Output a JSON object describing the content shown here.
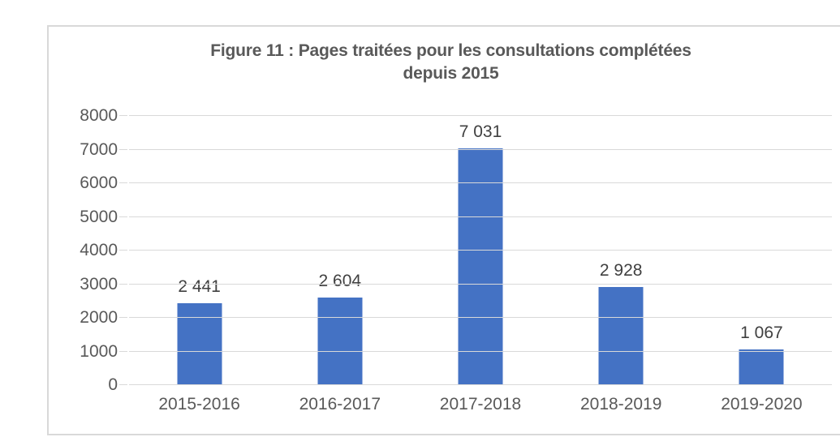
{
  "chart_data": {
    "type": "bar",
    "title": "Figure 11 : Pages traitées pour les consultations complétées depuis 2015",
    "title_lines": [
      "Figure 11 : Pages traitées pour les consultations complétées",
      "depuis 2015"
    ],
    "categories": [
      "2015-2016",
      "2016-2017",
      "2017-2018",
      "2018-2019",
      "2019-2020"
    ],
    "values": [
      2441,
      2604,
      7031,
      2928,
      1067
    ],
    "data_labels": [
      "2 441",
      "2 604",
      "7 031",
      "2 928",
      "1 067"
    ],
    "xlabel": "",
    "ylabel": "",
    "ylim": [
      0,
      8000
    ],
    "ytick_step": 1000,
    "ytick_labels": [
      "0",
      "1000",
      "2000",
      "3000",
      "4000",
      "5000",
      "6000",
      "7000",
      "8000"
    ],
    "grid": true,
    "legend": false,
    "bar_color": "#4472C4",
    "gridline_color": "#D9D9D9",
    "frame_border_color": "#D9D9D9",
    "axis_label_color": "#595959",
    "data_label_color": "#404040",
    "title_color": "#595959"
  }
}
